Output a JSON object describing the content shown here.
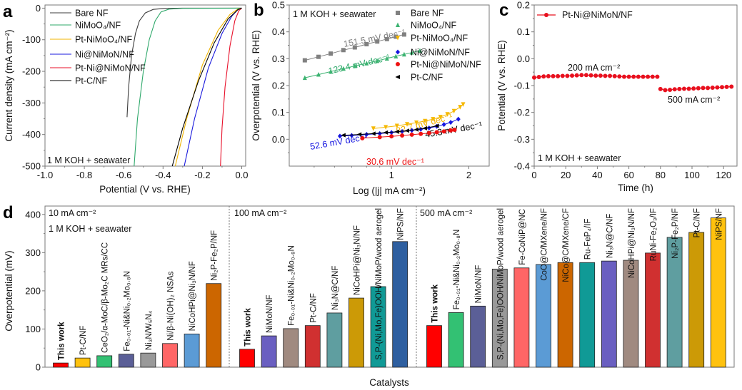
{
  "figure": {
    "panel_labels": [
      "a",
      "b",
      "c",
      "d"
    ]
  },
  "chart_data": [
    {
      "panel": "a",
      "type": "line",
      "xlabel": "Potential (V vs. RHE)",
      "ylabel": "Current density (mA cm⁻²)",
      "xlim": [
        -1.0,
        0.02
      ],
      "ylim": [
        -500,
        10
      ],
      "xticks": [
        "-1.0",
        "-0.8",
        "-0.6",
        "-0.4",
        "-0.2",
        "0.0"
      ],
      "yticks": [
        "0",
        "-100",
        "-200",
        "-300",
        "-400",
        "-500"
      ],
      "annotation": "1 M KOH + seawater",
      "legend_position": "top-left",
      "series": [
        {
          "name": "Bare NF",
          "color": "#3c3c3c",
          "points": [
            [
              -0.583,
              -345
            ],
            [
              -0.575,
              -250
            ],
            [
              -0.56,
              -150
            ],
            [
              -0.54,
              -80
            ],
            [
              -0.52,
              -40
            ],
            [
              -0.49,
              -15
            ],
            [
              -0.45,
              -4
            ],
            [
              -0.4,
              -1
            ],
            [
              -0.3,
              0
            ],
            [
              0,
              0
            ]
          ]
        },
        {
          "name": "NiMoO₄/NF",
          "color": "#2ea86a",
          "points": [
            [
              -0.547,
              -500
            ],
            [
              -0.53,
              -350
            ],
            [
              -0.5,
              -200
            ],
            [
              -0.47,
              -100
            ],
            [
              -0.44,
              -40
            ],
            [
              -0.41,
              -12
            ],
            [
              -0.37,
              -3
            ],
            [
              -0.3,
              -0.5
            ],
            [
              0,
              0
            ]
          ]
        },
        {
          "name": "Pt-NiMoO₄/NF",
          "color": "#f0b400",
          "points": [
            [
              -0.338,
              -500
            ],
            [
              -0.28,
              -350
            ],
            [
              -0.2,
              -180
            ],
            [
              -0.12,
              -70
            ],
            [
              -0.06,
              -20
            ],
            [
              -0.02,
              -3
            ],
            [
              0,
              0
            ]
          ]
        },
        {
          "name": "Ni@NiMoN/NF",
          "color": "#1a1adc",
          "points": [
            [
              -0.292,
              -500
            ],
            [
              -0.24,
              -350
            ],
            [
              -0.17,
              -190
            ],
            [
              -0.1,
              -80
            ],
            [
              -0.05,
              -25
            ],
            [
              -0.02,
              -5
            ],
            [
              0,
              0
            ]
          ]
        },
        {
          "name": "Pt-Ni@NiMoN/NF",
          "color": "#e8102a",
          "points": [
            [
              -0.108,
              -500
            ],
            [
              -0.1,
              -380
            ],
            [
              -0.085,
              -250
            ],
            [
              -0.06,
              -120
            ],
            [
              -0.035,
              -40
            ],
            [
              -0.015,
              -8
            ],
            [
              0,
              0
            ]
          ]
        },
        {
          "name": "Pt-C/NF",
          "color": "#000000",
          "points": [
            [
              -0.353,
              -500
            ],
            [
              -0.3,
              -380
            ],
            [
              -0.22,
              -230
            ],
            [
              -0.14,
              -110
            ],
            [
              -0.07,
              -35
            ],
            [
              -0.02,
              -5
            ],
            [
              0,
              0
            ]
          ]
        }
      ]
    },
    {
      "panel": "b",
      "type": "scatter",
      "xlabel": "Log (|j| mA cm⁻²)",
      "ylabel": "Overpotential (V vs. RHE)",
      "xscale": "log",
      "xlim": [
        0.4,
        2.4
      ],
      "ylim": [
        -0.1,
        0.5
      ],
      "xticks": [
        "1",
        "2"
      ],
      "yticks": [
        "0.0",
        "0.1",
        "0.2",
        "0.3",
        "0.4",
        "0.5"
      ],
      "annotation": "1 M KOH + seawater",
      "legend_position": "top-right",
      "series": [
        {
          "name": "Bare NF",
          "color": "#808080",
          "marker": "square",
          "slope": "151.5 mV dec⁻¹",
          "x": [
            0.46,
            0.52,
            0.58,
            0.65,
            0.72,
            0.8,
            0.88,
            0.96,
            1.04,
            1.12
          ],
          "y": [
            0.294,
            0.307,
            0.319,
            0.332,
            0.342,
            0.354,
            0.364,
            0.373,
            0.382,
            0.39
          ]
        },
        {
          "name": "NiMoO₄/NF",
          "color": "#3cb371",
          "marker": "triangle-up",
          "slope": "123.4 mV dec⁻¹",
          "x": [
            0.46,
            0.52,
            0.58,
            0.65,
            0.72,
            0.8,
            0.88,
            0.96,
            1.04,
            1.12,
            1.2,
            1.29
          ],
          "y": [
            0.229,
            0.241,
            0.252,
            0.263,
            0.273,
            0.283,
            0.292,
            0.301,
            0.309,
            0.316,
            0.323,
            0.33
          ]
        },
        {
          "name": "Pt-NiMoO₄/NF",
          "color": "#f5b800",
          "marker": "triangle-down",
          "slope": "82.7 mV dec⁻¹",
          "x": [
            0.85,
            0.95,
            1.05,
            1.15,
            1.25,
            1.35,
            1.45,
            1.55,
            1.65,
            1.75,
            1.85,
            1.9
          ],
          "y": [
            0.04,
            0.045,
            0.05,
            0.056,
            0.062,
            0.068,
            0.075,
            0.083,
            0.093,
            0.105,
            0.12,
            0.13
          ]
        },
        {
          "name": "Ni@NiMoN/NF",
          "color": "#1515e0",
          "marker": "diamond",
          "slope": "52.6 mV dec⁻¹",
          "x": [
            0.63,
            0.7,
            0.8,
            0.9,
            1.0,
            1.1,
            1.2,
            1.3,
            1.4,
            1.5,
            1.6,
            1.7,
            1.82
          ],
          "y": [
            0.012,
            0.014,
            0.018,
            0.021,
            0.025,
            0.029,
            0.033,
            0.037,
            0.042,
            0.048,
            0.055,
            0.063,
            0.075
          ]
        },
        {
          "name": "Pt-Ni@NiMoN/NF",
          "color": "#ee1111",
          "marker": "circle",
          "slope": "30.6 mV dec⁻¹",
          "x": [
            0.77,
            0.9,
            1.0,
            1.1,
            1.2,
            1.3,
            1.4,
            1.5,
            1.6,
            1.7,
            1.76
          ],
          "y": [
            0.004,
            0.008,
            0.011,
            0.014,
            0.017,
            0.02,
            0.023,
            0.026,
            0.029,
            0.033,
            0.035
          ]
        },
        {
          "name": "Pt-C/NF",
          "color": "#000000",
          "marker": "triangle-left",
          "slope": "45.3 mV dec⁻¹",
          "x": [
            0.65,
            0.75,
            0.85,
            0.95,
            1.05,
            1.15,
            1.25,
            1.35,
            1.5
          ],
          "y": [
            0.015,
            0.018,
            0.021,
            0.025,
            0.028,
            0.032,
            0.036,
            0.041,
            0.05
          ]
        }
      ]
    },
    {
      "panel": "c",
      "type": "line",
      "xlabel": "Time (h)",
      "ylabel": "Potential (V vs. RHE)",
      "xlim": [
        0,
        128.5
      ],
      "ylim": [
        -0.4,
        0.2
      ],
      "xticks": [
        "0",
        "20",
        "40",
        "60",
        "80",
        "100",
        "120"
      ],
      "yticks": [
        "0.2",
        "0.1",
        "0.0",
        "-0.1",
        "-0.2",
        "-0.3",
        "-0.4"
      ],
      "annotation": "1 M KOH + seawater",
      "labels": [
        "200 mA cm⁻²",
        "500 mA cm⁻²"
      ],
      "legend_position": "top-left",
      "series": [
        {
          "name": "Pt-Ni@NiMoN/NF",
          "color": "#e8101e",
          "marker": "circle",
          "x": [
            0,
            3,
            6,
            9,
            12,
            15,
            18,
            21,
            24,
            27,
            30,
            33,
            36,
            39,
            42,
            45,
            48,
            51,
            54,
            57,
            60,
            63,
            66,
            69,
            72,
            75,
            78
          ],
          "y": [
            -0.07,
            -0.068,
            -0.066,
            -0.065,
            -0.065,
            -0.065,
            -0.064,
            -0.064,
            -0.063,
            -0.062,
            -0.061,
            -0.061,
            -0.062,
            -0.063,
            -0.063,
            -0.064,
            -0.064,
            -0.065,
            -0.066,
            -0.067,
            -0.067,
            -0.067,
            -0.067,
            -0.067,
            -0.067,
            -0.067,
            -0.067
          ]
        },
        {
          "name": "Pt-Ni@NiMoN/NF",
          "color": "#e8101e",
          "marker": "circle",
          "x": [
            80,
            83,
            86,
            89,
            92,
            95,
            98,
            101,
            104,
            107,
            110,
            113,
            116,
            119,
            122,
            125
          ],
          "y": [
            -0.113,
            -0.117,
            -0.116,
            -0.114,
            -0.113,
            -0.112,
            -0.112,
            -0.111,
            -0.11,
            -0.109,
            -0.109,
            -0.108,
            -0.107,
            -0.106,
            -0.105,
            -0.104
          ]
        }
      ]
    },
    {
      "panel": "d",
      "type": "bar",
      "xlabel": "Catalysts",
      "ylabel": "Overpotential (mV)",
      "ylim": [
        0,
        422
      ],
      "yticks": [
        "0",
        "100",
        "200",
        "300",
        "400"
      ],
      "annotation": "1 M KOH + seawater",
      "groups": [
        {
          "label": "10 mA cm⁻²",
          "bars": [
            {
              "name": "This work",
              "value": 11,
              "color": "#ff0000",
              "highlight": true
            },
            {
              "name": "Pt-C/NF",
              "value": 24,
              "color": "#ffc20e"
            },
            {
              "name": "CeO₂/α-MoC/β-Mo₂C MRs/CC",
              "value": 30,
              "color": "#33c173"
            },
            {
              "name": "Fe₀.₀₁-Ni&Ni₀.₂Mo₀.₈N",
              "value": 34,
              "color": "#5b5f97"
            },
            {
              "name": "Ni₃N/W₅N₄",
              "value": 37,
              "color": "#999999"
            },
            {
              "name": "Ni/β-Ni(OH)₂ NSAs",
              "value": 62,
              "color": "#ff6666"
            },
            {
              "name": "NiCoHPi@Ni₃N/NF",
              "value": 87,
              "color": "#5b9bd5"
            },
            {
              "name": "Ni₂P-Fe₂P/NF",
              "value": 219,
              "color": "#cc6600"
            }
          ]
        },
        {
          "label": "100 mA cm⁻²",
          "bars": [
            {
              "name": "This work",
              "value": 47,
              "color": "#ff0000",
              "highlight": true
            },
            {
              "name": "NiMoN/NF",
              "value": 82,
              "color": "#6a5fc1"
            },
            {
              "name": "Fe₀.₀₁-Ni&Ni₀.₂Mo₀.₈N",
              "value": 101,
              "color": "#a08a80"
            },
            {
              "name": "Pt-C/NF",
              "value": 109,
              "color": "#d03030"
            },
            {
              "name": "Ni₃N@C/NF",
              "value": 142,
              "color": "#5f9ea0"
            },
            {
              "name": "NiCoHPi@Ni₃N/NF",
              "value": 181,
              "color": "#cc9a06"
            },
            {
              "name": "S,P-(Ni,Mo,Fe)OOH/NiMoP/wood aerogel",
              "value": 211,
              "color": "#109a96"
            },
            {
              "name": "NiPS/NF",
              "value": 329,
              "color": "#2e5fa0"
            }
          ]
        },
        {
          "label": "500 mA cm⁻²",
          "bars": [
            {
              "name": "This work",
              "value": 109,
              "color": "#ff0000",
              "highlight": true
            },
            {
              "name": "Fe₀.₀₁-Ni&Ni₀.₂Mo₀.₈N",
              "value": 143,
              "color": "#33c173"
            },
            {
              "name": "NiMoN/NF",
              "value": 160,
              "color": "#5b5f97"
            },
            {
              "name": "S,P-(Ni,Mo,Fe)OOH/NiMoP/wood aerogel",
              "value": 257,
              "color": "#999999"
            },
            {
              "name": "Fe-CoNiP@NC",
              "value": 260,
              "color": "#ff6666"
            },
            {
              "name": "CoO@C/MXene/NF",
              "value": 269,
              "color": "#5b9bd5"
            },
            {
              "name": "NiCo@C/MXene/CF",
              "value": 274,
              "color": "#cc6600"
            },
            {
              "name": "Ru-FeP₄/IF",
              "value": 274,
              "color": "#109a96"
            },
            {
              "name": "Ni₃N@C/NF",
              "value": 278,
              "color": "#6a5fc1"
            },
            {
              "name": "NiCoHPi@Ni₃N/NF",
              "value": 280,
              "color": "#a08a80"
            },
            {
              "name": "RuNi-Fe₂O₃/IF",
              "value": 299,
              "color": "#d03030"
            },
            {
              "name": "Ni₂P-Fe₂P/NF",
              "value": 340,
              "color": "#5f9ea0"
            },
            {
              "name": "Pt-C/NF",
              "value": 353,
              "color": "#cc9a06"
            },
            {
              "name": "NiPS/NF",
              "value": 391,
              "color": "#ffc20e"
            }
          ]
        }
      ]
    }
  ]
}
